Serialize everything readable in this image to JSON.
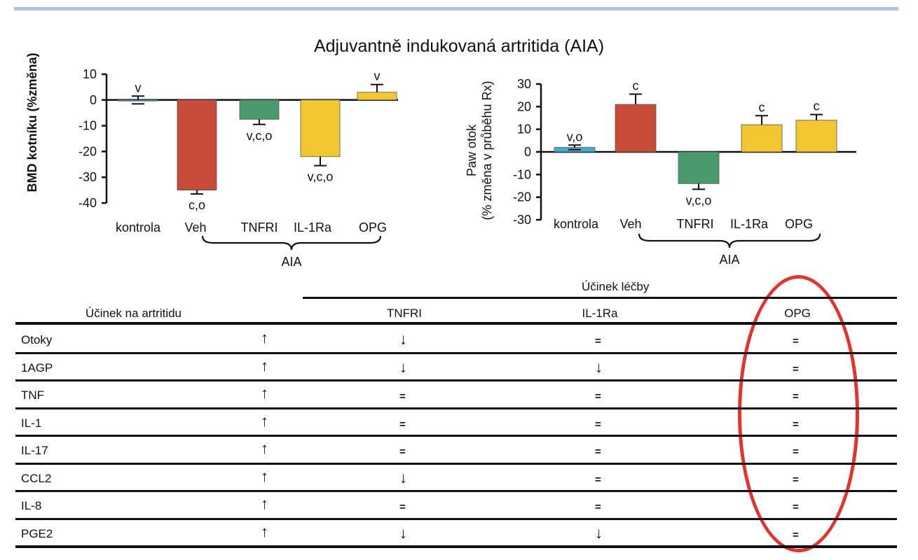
{
  "figure": {
    "title": "Adjuvantně indukovaná artritida (AIA)"
  },
  "chart_data": [
    {
      "type": "bar",
      "ylabel": "BMD kotníku (%změna)",
      "ylim": [
        -40,
        10
      ],
      "yticks": [
        10,
        0,
        -10,
        -20,
        -30,
        -40
      ],
      "categories": [
        "kontrola",
        "Veh",
        "TNFRI",
        "IL-1Ra",
        "OPG"
      ],
      "values": [
        0,
        -35,
        -7.5,
        -22,
        3
      ],
      "errors": [
        1.5,
        1.5,
        2,
        3.5,
        3
      ],
      "annotations": [
        "v",
        "c,o",
        "v,c,o",
        "v,c,o",
        "v"
      ],
      "colors": [
        "#3ab0d8",
        "#c84b3a",
        "#4a9a6e",
        "#f2c62e",
        "#f2c62e"
      ],
      "group_label": "AIA"
    },
    {
      "type": "bar",
      "ylabel": "Paw otok\n(% změna v průběhu Rx)",
      "ylim": [
        -30,
        30
      ],
      "yticks": [
        30,
        20,
        10,
        0,
        -10,
        -20,
        -30
      ],
      "categories": [
        "kontrola",
        "Veh",
        "TNFRI",
        "IL-1Ra",
        "OPG"
      ],
      "values": [
        2,
        21,
        -14,
        12,
        14
      ],
      "errors": [
        1,
        4.5,
        2.5,
        4,
        2.5
      ],
      "annotations": [
        "v,o",
        "c",
        "v,c,o",
        "c",
        "c"
      ],
      "colors": [
        "#3ab0d8",
        "#c84b3a",
        "#4a9a6e",
        "#f2c62e",
        "#f2c62e"
      ],
      "group_label": "AIA"
    }
  ],
  "table": {
    "group_header": "Účinek léčby",
    "row_header": "Účinek na artritidu",
    "columns": [
      "TNFRI",
      "IL-1Ra",
      "OPG"
    ],
    "rows": [
      {
        "label": "Otoky",
        "effect": "up",
        "cells": [
          "down",
          "=",
          "="
        ]
      },
      {
        "label": "1AGP",
        "effect": "up",
        "cells": [
          "down",
          "down",
          "="
        ]
      },
      {
        "label": "TNF",
        "effect": "up",
        "cells": [
          "=",
          "=",
          "="
        ]
      },
      {
        "label": "IL-1",
        "effect": "up",
        "cells": [
          "=",
          "=",
          "="
        ]
      },
      {
        "label": "IL-17",
        "effect": "up",
        "cells": [
          "=",
          "=",
          "="
        ]
      },
      {
        "label": "CCL2",
        "effect": "up",
        "cells": [
          "down",
          "=",
          "="
        ]
      },
      {
        "label": "IL-8",
        "effect": "up",
        "cells": [
          "=",
          "=",
          "="
        ]
      },
      {
        "label": "PGE2",
        "effect": "up",
        "cells": [
          "down",
          "down",
          "="
        ]
      }
    ],
    "highlight_color": "#e6322c"
  }
}
